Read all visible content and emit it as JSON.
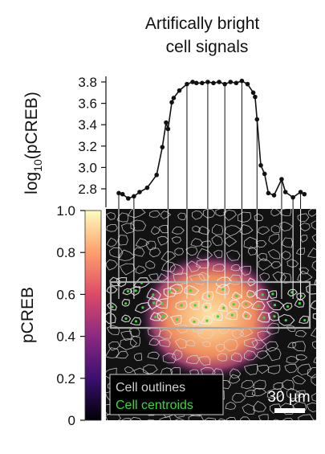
{
  "chart_data": [
    {
      "type": "line",
      "title": "Artifically bright\ncell signals",
      "ylabel_prefix": "log",
      "ylabel_sub": "10",
      "ylabel_suffix": "(pCREB)",
      "ylim": [
        2.7,
        3.85
      ],
      "yticks": [
        2.8,
        3.0,
        3.2,
        3.4,
        3.6,
        3.8
      ],
      "ytick_labels": [
        "2.8",
        "3.0",
        "3.2",
        "3.4",
        "3.6",
        "3.8"
      ],
      "grid": false,
      "x": [
        0.0,
        0.02,
        0.05,
        0.08,
        0.11,
        0.15,
        0.2,
        0.23,
        0.25,
        0.26,
        0.28,
        0.29,
        0.32,
        0.36,
        0.39,
        0.41,
        0.44,
        0.47,
        0.5,
        0.53,
        0.56,
        0.59,
        0.62,
        0.65,
        0.68,
        0.71,
        0.72,
        0.73,
        0.75,
        0.77,
        0.79,
        0.82,
        0.86,
        0.88,
        0.92,
        0.96,
        0.98
      ],
      "y": [
        2.76,
        2.75,
        2.71,
        2.73,
        2.77,
        2.81,
        2.93,
        3.19,
        3.42,
        3.36,
        3.61,
        3.65,
        3.72,
        3.78,
        3.8,
        3.79,
        3.79,
        3.8,
        3.79,
        3.8,
        3.78,
        3.8,
        3.79,
        3.81,
        3.78,
        3.7,
        3.66,
        3.45,
        3.02,
        2.94,
        2.76,
        2.74,
        2.89,
        2.77,
        2.72,
        2.77,
        2.75
      ],
      "connector_x": [
        0.0,
        0.08,
        0.26,
        0.36,
        0.47,
        0.56,
        0.65,
        0.73,
        0.86,
        0.92,
        0.96
      ]
    },
    {
      "type": "heatmap",
      "colorbar": {
        "label": "pCREB",
        "range": [
          0,
          1.0
        ],
        "ticks": [
          0,
          0.2,
          0.4,
          0.6,
          0.8,
          1.0
        ],
        "tick_labels": [
          "0",
          "0.2",
          "0.4",
          "0.6",
          "0.8",
          "1.0"
        ],
        "colors": [
          "#000004",
          "#3b0f70",
          "#8c2981",
          "#de4968",
          "#fe9f6d",
          "#fcfdbf"
        ]
      },
      "legend": [
        {
          "label": "Cell outlines",
          "color": "#d0d0d0"
        },
        {
          "label": "Cell centroids",
          "color": "#39d839"
        }
      ],
      "scalebar": "30 µm",
      "colors": {
        "outline": "#d8d8d8",
        "centroid": "#39d839",
        "roi": "#aaaaaa",
        "connector": "#e8e8e8",
        "background": "#111111"
      }
    }
  ]
}
